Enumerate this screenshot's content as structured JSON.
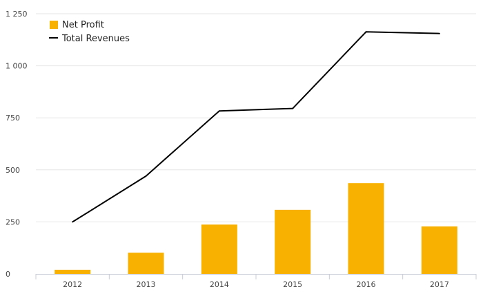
{
  "chart_data": {
    "type": "bar",
    "categories": [
      "2012",
      "2013",
      "2014",
      "2015",
      "2016",
      "2017"
    ],
    "series": [
      {
        "name": "Net Profit",
        "kind": "bar",
        "color": "#f8b100",
        "values": [
          20,
          102,
          237,
          308,
          436,
          228
        ]
      },
      {
        "name": "Total Revenues",
        "kind": "line",
        "color": "#000000",
        "values": [
          250,
          470,
          783,
          795,
          1163,
          1155
        ]
      }
    ],
    "ylim": [
      0,
      1250
    ],
    "yticks": [
      0,
      250,
      500,
      750,
      1000,
      1250
    ],
    "ytick_labels": [
      "0",
      "250",
      "500",
      "750",
      "1 000",
      "1 250"
    ],
    "grid": true,
    "legend_position": "top-left"
  }
}
